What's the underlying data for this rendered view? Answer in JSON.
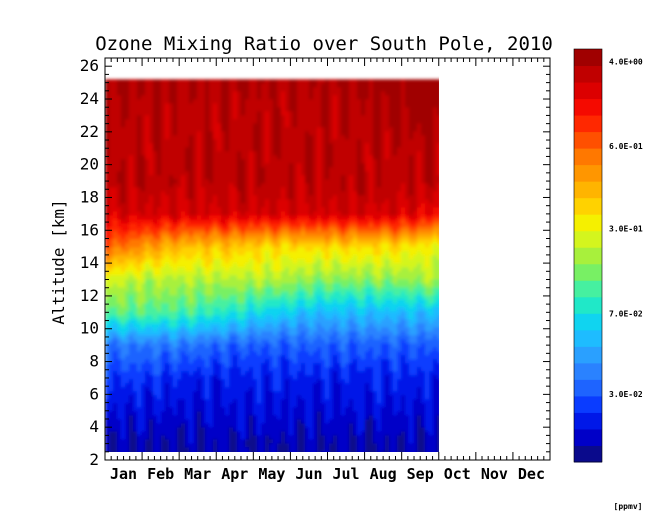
{
  "chart_data": {
    "type": "heatmap",
    "title": "Ozone Mixing Ratio over South Pole, 2010",
    "ylabel": "Altitude [km]",
    "xlabel": "",
    "ylim": [
      2,
      26.5
    ],
    "y_ticks": [
      "2",
      "4",
      "6",
      "8",
      "10",
      "12",
      "14",
      "16",
      "18",
      "20",
      "22",
      "24",
      "26"
    ],
    "months": [
      "Jan",
      "Feb",
      "Mar",
      "Apr",
      "May",
      "Jun",
      "Jul",
      "Aug",
      "Sep",
      "Oct",
      "Nov",
      "Dec"
    ],
    "data_end_month_index": 9,
    "altitudes_km": [
      3,
      5,
      7,
      9,
      11,
      13,
      15,
      17,
      19,
      21,
      23,
      25
    ],
    "monthly_values_ppmv": [
      {
        "month": "Jan",
        "values": [
          0.025,
          0.03,
          0.04,
          0.06,
          0.2,
          0.35,
          1.2,
          2.5,
          3.0,
          3.0,
          3.2,
          3.5
        ]
      },
      {
        "month": "Feb",
        "values": [
          0.025,
          0.03,
          0.04,
          0.06,
          0.2,
          0.3,
          0.8,
          2.5,
          3.0,
          3.0,
          3.0,
          3.2
        ]
      },
      {
        "month": "Mar",
        "values": [
          0.025,
          0.03,
          0.035,
          0.06,
          0.18,
          0.3,
          0.6,
          2.5,
          3.0,
          3.0,
          3.0,
          3.2
        ]
      },
      {
        "month": "Apr",
        "values": [
          0.025,
          0.03,
          0.035,
          0.05,
          0.15,
          0.3,
          0.6,
          2.5,
          3.0,
          3.0,
          3.0,
          3.2
        ]
      },
      {
        "month": "May",
        "values": [
          0.025,
          0.03,
          0.035,
          0.05,
          0.12,
          0.3,
          0.5,
          2.5,
          3.0,
          3.0,
          3.0,
          3.2
        ]
      },
      {
        "month": "Jun",
        "values": [
          0.025,
          0.03,
          0.035,
          0.05,
          0.1,
          0.25,
          0.5,
          2.5,
          3.0,
          3.0,
          3.0,
          3.2
        ]
      },
      {
        "month": "Jul",
        "values": [
          0.025,
          0.03,
          0.035,
          0.05,
          0.1,
          0.25,
          0.5,
          2.5,
          3.0,
          3.0,
          3.0,
          3.2
        ]
      },
      {
        "month": "Aug",
        "values": [
          0.025,
          0.03,
          0.035,
          0.05,
          0.1,
          0.25,
          0.5,
          2.5,
          3.0,
          3.0,
          3.5,
          3.8
        ]
      },
      {
        "month": "Sep",
        "values": [
          0.025,
          0.03,
          0.035,
          0.05,
          0.1,
          0.3,
          0.4,
          2.0,
          3.0,
          3.0,
          3.5,
          3.8
        ]
      }
    ],
    "colorbar": {
      "labels": [
        "4.0E+00",
        "6.0E-01",
        "3.0E-01",
        "7.0E-02",
        "3.0E-02"
      ],
      "unit": "[ppmv]",
      "colors": [
        "#0a0a8c",
        "#0000c8",
        "#0018e8",
        "#0a3cff",
        "#1e64ff",
        "#2a82ff",
        "#2aa0ff",
        "#1ebcff",
        "#10d4f0",
        "#20e8c8",
        "#46f0a0",
        "#78f064",
        "#a8f03c",
        "#d4f51e",
        "#f5f000",
        "#ffd200",
        "#ffb400",
        "#ff9600",
        "#ff7800",
        "#ff5000",
        "#ff2800",
        "#f50a00",
        "#dc0000",
        "#c00000",
        "#a00000"
      ]
    }
  }
}
